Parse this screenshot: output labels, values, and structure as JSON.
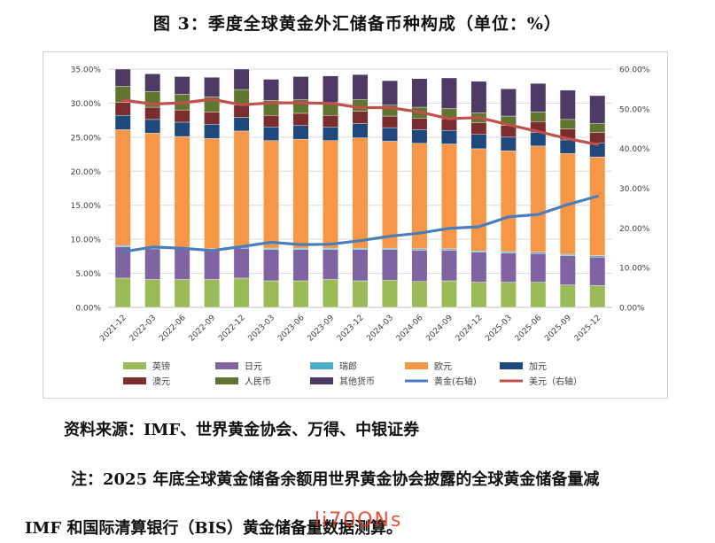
{
  "figure_title": "图 3：季度全球黄金外汇储备币种构成（单位：%）",
  "source": "资料来源：IMF、世界黄金协会、万得、中银证券",
  "note_line1": "注：2025 年底全球黄金储备余额用世界黄金协会披露的全球黄金储备量减",
  "note_line2": "IMF 和国际清算银行（BIS）黄金储备量数据测算。",
  "watermark": "li70ONs",
  "chart_data": {
    "type": "bar",
    "stacked": true,
    "categories": [
      "2021-12",
      "2022-03",
      "2022-06",
      "2022-09",
      "2022-12",
      "2023-03",
      "2023-06",
      "2023-09",
      "2023-12",
      "2024-03",
      "2024-06",
      "2024-09",
      "2024-12",
      "2025-03",
      "2025-06",
      "2025-09",
      "2025-12"
    ],
    "y_left": {
      "ylim": [
        0,
        35
      ],
      "ticks": [
        "0.00%",
        "5.00%",
        "10.00%",
        "15.00%",
        "20.00%",
        "25.00%",
        "30.00%",
        "35.00%"
      ]
    },
    "y_right": {
      "ylim": [
        0,
        60
      ],
      "ticks": [
        "0.00%",
        "10.00%",
        "20.00%",
        "30.00%",
        "40.00%",
        "50.00%",
        "60.00%"
      ]
    },
    "grid": true,
    "legend_position": "bottom",
    "series": [
      {
        "name": "英镑",
        "axis": "left",
        "type": "bar",
        "color": "#9bbb59",
        "values": [
          4.3,
          4.1,
          4.1,
          4.1,
          4.3,
          3.9,
          3.9,
          4.1,
          3.9,
          4.0,
          3.8,
          3.9,
          3.7,
          3.7,
          3.7,
          3.3,
          3.2
        ]
      },
      {
        "name": "日元",
        "axis": "left",
        "type": "bar",
        "color": "#8064a2",
        "values": [
          4.6,
          4.5,
          4.5,
          4.3,
          4.4,
          4.6,
          4.6,
          4.4,
          4.6,
          4.5,
          4.6,
          4.5,
          4.4,
          4.3,
          4.2,
          4.3,
          4.2
        ]
      },
      {
        "name": "瑞郎",
        "axis": "left",
        "type": "bar",
        "color": "#4bacc6",
        "values": [
          0.2,
          0.2,
          0.2,
          0.2,
          0.2,
          0.2,
          0.2,
          0.2,
          0.2,
          0.2,
          0.2,
          0.2,
          0.2,
          0.2,
          0.2,
          0.2,
          0.2
        ]
      },
      {
        "name": "欧元",
        "axis": "left",
        "type": "bar",
        "color": "#f79646",
        "values": [
          17.0,
          16.8,
          16.3,
          16.2,
          17.0,
          15.8,
          16.0,
          15.8,
          16.2,
          15.7,
          15.5,
          15.4,
          15.0,
          14.8,
          15.6,
          14.8,
          14.5
        ]
      },
      {
        "name": "加元",
        "axis": "left",
        "type": "bar",
        "color": "#1f497d",
        "values": [
          2.1,
          2.0,
          2.1,
          2.1,
          2.0,
          2.0,
          2.0,
          2.0,
          2.1,
          2.0,
          2.0,
          2.0,
          2.1,
          2.0,
          2.0,
          2.0,
          2.0
        ]
      },
      {
        "name": "澳元",
        "axis": "left",
        "type": "bar",
        "color": "#7b2c2c",
        "values": [
          1.9,
          1.8,
          1.8,
          1.8,
          1.8,
          1.7,
          1.8,
          1.7,
          1.8,
          1.7,
          1.7,
          1.7,
          1.7,
          1.7,
          1.6,
          1.6,
          1.6
        ]
      },
      {
        "name": "人民币",
        "axis": "left",
        "type": "bar",
        "color": "#5f7530",
        "values": [
          2.4,
          2.3,
          2.3,
          2.2,
          2.3,
          2.2,
          2.0,
          1.9,
          1.7,
          1.6,
          1.6,
          1.5,
          1.5,
          1.4,
          1.4,
          1.4,
          1.3
        ]
      },
      {
        "name": "其他货币",
        "axis": "left",
        "type": "bar",
        "color": "#4f3a66",
        "values": [
          2.5,
          2.6,
          2.6,
          2.9,
          3.0,
          3.1,
          3.4,
          3.9,
          3.7,
          3.6,
          4.2,
          4.5,
          4.6,
          4.0,
          4.2,
          4.3,
          4.1
        ]
      },
      {
        "name": "黄金(右轴)",
        "axis": "right",
        "type": "line",
        "color": "#4a7ebb",
        "values": [
          14.0,
          15.2,
          14.9,
          14.3,
          15.3,
          16.4,
          15.8,
          15.9,
          16.8,
          17.9,
          18.7,
          19.9,
          20.3,
          22.8,
          23.4,
          25.9,
          28.0
        ]
      },
      {
        "name": "美元（右轴）",
        "axis": "right",
        "type": "line",
        "color": "#c0504d",
        "values": [
          52.2,
          51.2,
          51.5,
          52.4,
          51.0,
          51.5,
          51.5,
          51.4,
          50.3,
          50.3,
          49.2,
          47.5,
          47.8,
          46.0,
          44.3,
          42.5,
          41.0
        ]
      }
    ]
  }
}
